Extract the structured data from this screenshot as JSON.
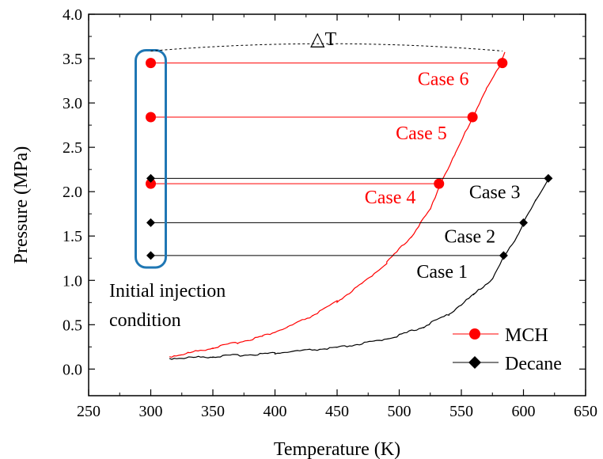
{
  "chart_data": {
    "type": "line",
    "xlabel": "Temperature (K)",
    "ylabel": "Pressure (MPa)",
    "xlim": [
      250,
      650
    ],
    "ylim": [
      -0.3,
      4.0
    ],
    "x_ticks": [
      "250",
      "300",
      "350",
      "400",
      "450",
      "500",
      "550",
      "600",
      "650"
    ],
    "y_ticks": [
      "0.0",
      "0.5",
      "1.0",
      "1.5",
      "2.0",
      "2.5",
      "3.0",
      "3.5",
      "4.0"
    ],
    "legend": {
      "placement": "bottom-right",
      "entries": [
        {
          "name": "MCH",
          "color": "#ff0000",
          "marker": "circle"
        },
        {
          "name": "Decane",
          "color": "#000000",
          "marker": "diamond"
        }
      ]
    },
    "series": [
      {
        "name": "MCH",
        "color": "#ff0000",
        "curve": [
          [
            315,
            0.14
          ],
          [
            330,
            0.18
          ],
          [
            350,
            0.24
          ],
          [
            370,
            0.3
          ],
          [
            390,
            0.37
          ],
          [
            410,
            0.47
          ],
          [
            430,
            0.6
          ],
          [
            450,
            0.76
          ],
          [
            470,
            0.96
          ],
          [
            490,
            1.2
          ],
          [
            510,
            1.5
          ],
          [
            525,
            1.8
          ],
          [
            533,
            2.09
          ],
          [
            545,
            2.42
          ],
          [
            559,
            2.84
          ],
          [
            570,
            3.15
          ],
          [
            580,
            3.4
          ],
          [
            585,
            3.58
          ]
        ],
        "cases": [
          {
            "label": "Case 4",
            "initial_T": 300,
            "final_T": 532,
            "pressure": 2.09
          },
          {
            "label": "Case 5",
            "initial_T": 300,
            "final_T": 559,
            "pressure": 2.84
          },
          {
            "label": "Case 6",
            "initial_T": 300,
            "final_T": 583,
            "pressure": 3.45
          }
        ]
      },
      {
        "name": "Decane",
        "color": "#000000",
        "curve": [
          [
            315,
            0.12
          ],
          [
            350,
            0.14
          ],
          [
            400,
            0.18
          ],
          [
            450,
            0.24
          ],
          [
            480,
            0.31
          ],
          [
            500,
            0.38
          ],
          [
            520,
            0.48
          ],
          [
            540,
            0.62
          ],
          [
            560,
            0.84
          ],
          [
            575,
            1.02
          ],
          [
            585,
            1.28
          ],
          [
            595,
            1.5
          ],
          [
            600,
            1.65
          ],
          [
            610,
            1.9
          ],
          [
            620,
            2.15
          ]
        ],
        "cases": [
          {
            "label": "Case 1",
            "initial_T": 300,
            "final_T": 584,
            "pressure": 1.28
          },
          {
            "label": "Case 2",
            "initial_T": 300,
            "final_T": 600,
            "pressure": 1.65
          },
          {
            "label": "Case 3",
            "initial_T": 300,
            "final_T": 620,
            "pressure": 2.15
          }
        ]
      }
    ],
    "annotations": {
      "initial_condition": [
        "Initial injection",
        "condition"
      ],
      "initial_box_color": "#1f77b4",
      "delta_t": "△T"
    }
  }
}
